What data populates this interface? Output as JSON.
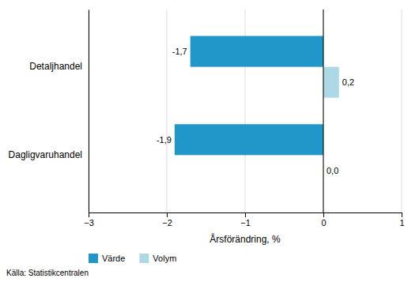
{
  "chart_data": {
    "type": "bar",
    "orientation": "horizontal",
    "categories": [
      "Dagligvaruhandel",
      "Detaljhandel"
    ],
    "series": [
      {
        "name": "Värde",
        "color": "#2196C8",
        "values": [
          -1.9,
          -1.7
        ],
        "value_labels": [
          "-1,9",
          "-1,7"
        ]
      },
      {
        "name": "Volym",
        "color": "#ADD8E6",
        "values": [
          0.0,
          0.2
        ],
        "value_labels": [
          "0,0",
          "0,2"
        ]
      }
    ],
    "xlabel": "Årsförändring, %",
    "xlim": [
      -3,
      1
    ],
    "xticks": [
      -3,
      -2,
      -1,
      0,
      1
    ],
    "grid": true,
    "legend": "lower-left",
    "data_labels": true,
    "annotations": [
      "Källa:  Statistikcentralen"
    ]
  }
}
